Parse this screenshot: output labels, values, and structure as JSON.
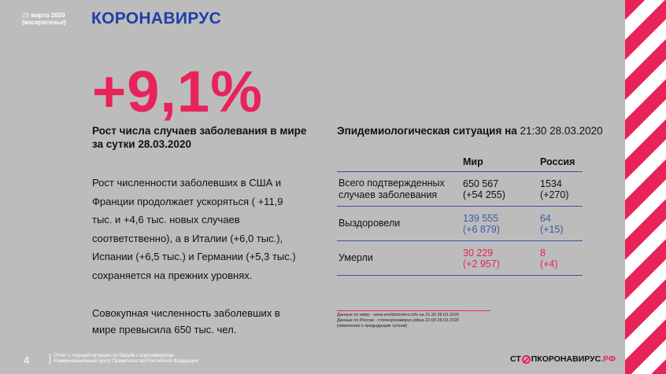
{
  "header": {
    "date_num": "29",
    "date_month_year": "марта 2020",
    "date_weekday": "(воскресенье)",
    "title": "КОРОНАВИРУС"
  },
  "main": {
    "big_figure": "+9,1%",
    "subtitle": "Рост числа случаев заболевания в мире за сутки 28.03.2020",
    "para1": "Рост численности заболевших в США и Франции продолжает ускоряться ( +11,9 тыс. и +4,6 тыс. новых случаев соответственно), а в Италии (+6,0 тыс.), Испании (+6,5 тыс.) и Германии (+5,3 тыс.) сохраняется на прежних уровнях.",
    "para2": "Совокупная численность заболевших в мире превысила 650 тыс. чел."
  },
  "epi": {
    "title_bold": "Эпидемиологическая ситуация на",
    "title_time": "21:30 28.03.2020",
    "columns": [
      "Мир",
      "Россия"
    ],
    "rows": [
      {
        "label": "Всего подтвержденных случаев заболевания",
        "world": "650 567",
        "world_delta": "(+54 255)",
        "russia": "1534",
        "russia_delta": "(+270)"
      },
      {
        "label": "Выздоровели",
        "world": "139 555",
        "world_delta": "(+6 879)",
        "russia": "64",
        "russia_delta": "(+15)"
      },
      {
        "label": "Умерли",
        "world": "30 229",
        "world_delta": "(+2 957)",
        "russia": "8",
        "russia_delta": "(+4)"
      }
    ]
  },
  "sources": {
    "line1": "Данные по миру - www.worldometers.info на 21:30 28.03.2020",
    "line2": "Данные по России - стопкоронавирус.рфна 22:00 28.03.2020",
    "line3": "(изменение к предыдущим суткам)"
  },
  "footer": {
    "page_number": "4",
    "line1": "Отчет о текущей ситуации по борьбе с коронавирусом.",
    "line2": "Коммуникационный центр Правительства Российской Федерации",
    "logo_pre": "СТ",
    "logo_post": "ПКОРОНАВИРУС",
    "logo_domain": ".РФ"
  },
  "colors": {
    "accent_red": "#e8235a",
    "title_blue": "#1f3fa8",
    "background": "#bcbcbc"
  }
}
